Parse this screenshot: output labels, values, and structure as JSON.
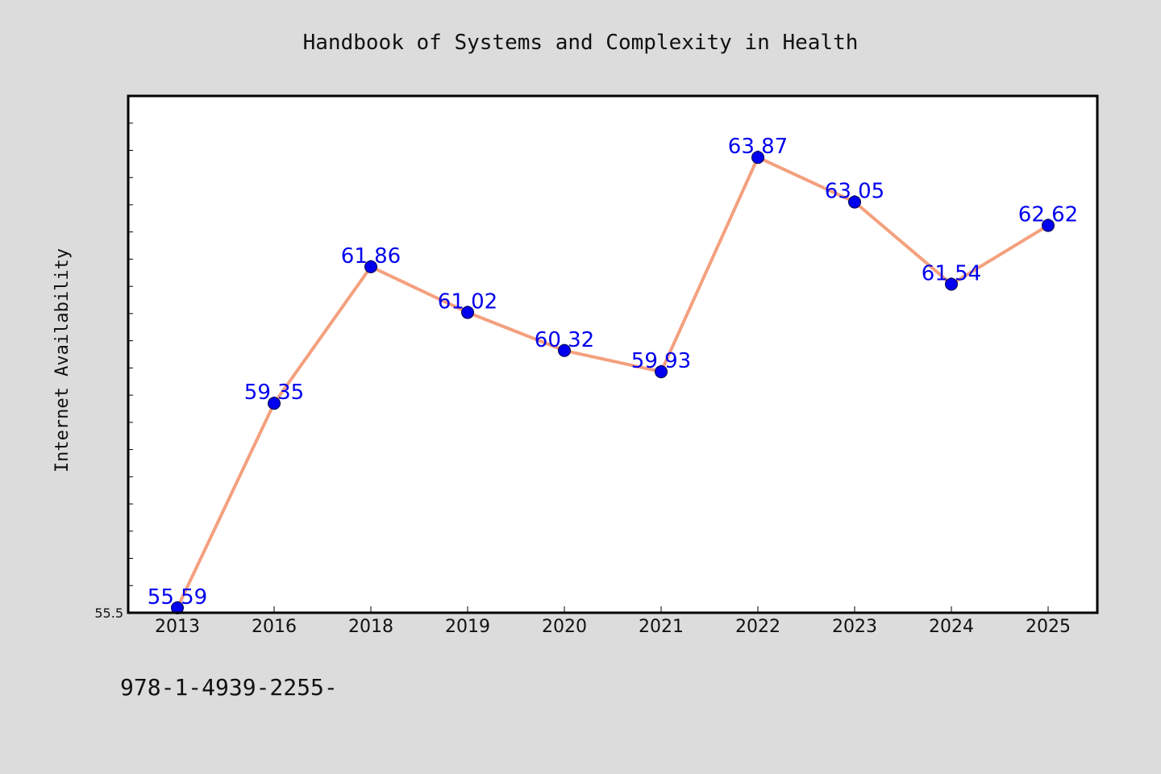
{
  "footer": {
    "text": "978-1-4939-2255-"
  },
  "colors": {
    "background": "#dcdcdc",
    "plot_background": "#ffffff",
    "line": "#f4a07e",
    "marker": "#0000ee",
    "data_label": "#0000ee",
    "text": "#111111"
  },
  "chart_data": {
    "type": "line",
    "title": "Handbook of Systems and Complexity in Health",
    "xlabel": "",
    "ylabel": "Internet Availability",
    "categories": [
      "2013",
      "2016",
      "2018",
      "2019",
      "2020",
      "2021",
      "2022",
      "2023",
      "2024",
      "2025"
    ],
    "series": [
      {
        "values": [
          55.59,
          59.35,
          61.86,
          61.02,
          60.32,
          59.93,
          63.87,
          63.05,
          61.54,
          62.62
        ],
        "labels": [
          "55.59",
          "59.35",
          "61.86",
          "61.02",
          "60.32",
          "59.93",
          "63.87",
          "63.05",
          "61.54",
          "62.62"
        ]
      }
    ],
    "ylim": [
      55.5,
      65.0
    ],
    "y_tick_labels": [
      "55.5"
    ],
    "y_minor_tick_step": 0.5,
    "grid": false,
    "legend": "none"
  }
}
